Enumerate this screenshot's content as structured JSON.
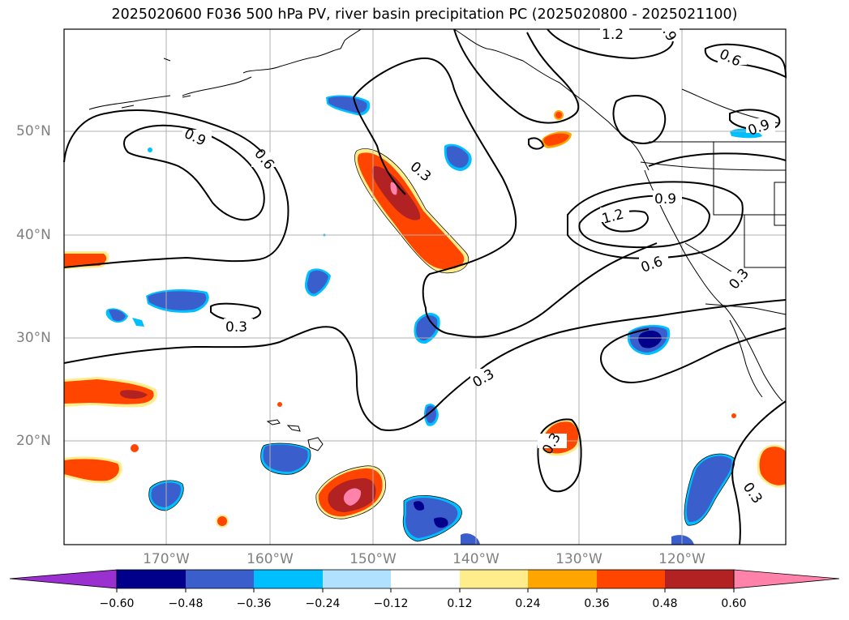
{
  "title": "2025020600 F036 500 hPa PV, river basin precipitation PC (2025020800 - 2025021100)",
  "lat_labels": [
    "50°N",
    "40°N",
    "30°N",
    "20°N"
  ],
  "lon_labels": [
    "170°W",
    "160°W",
    "150°W",
    "140°W",
    "130°W",
    "120°W"
  ],
  "contour_labels": [
    "1.2",
    ".9",
    "0.6",
    "0.9",
    "0.6",
    "0.3",
    "0.9",
    "0.9",
    "1.2",
    "0.6",
    "0.3",
    "0.3",
    "0.3",
    "0.3",
    "0.3"
  ],
  "colorbar": {
    "ticks": [
      "−0.60",
      "−0.48",
      "−0.36",
      "−0.24",
      "−0.12",
      "0.12",
      "0.24",
      "0.36",
      "0.48",
      "0.60"
    ],
    "colors": [
      "#9b30d0",
      "#00008b",
      "#3a5fcd",
      "#00bfff",
      "#b0e2ff",
      "#ffffff",
      "#ffec8b",
      "#ffa500",
      "#ff4500",
      "#b22222",
      "#ff82ab"
    ]
  },
  "fill_colors": {
    "neg_strong": "#00008b",
    "neg_mid": "#3a5fcd",
    "neg_light": "#00bfff",
    "pos_light": "#ffec8b",
    "pos_mid": "#ff4500",
    "pos_strong": "#b22222",
    "pos_max": "#ff82ab"
  }
}
